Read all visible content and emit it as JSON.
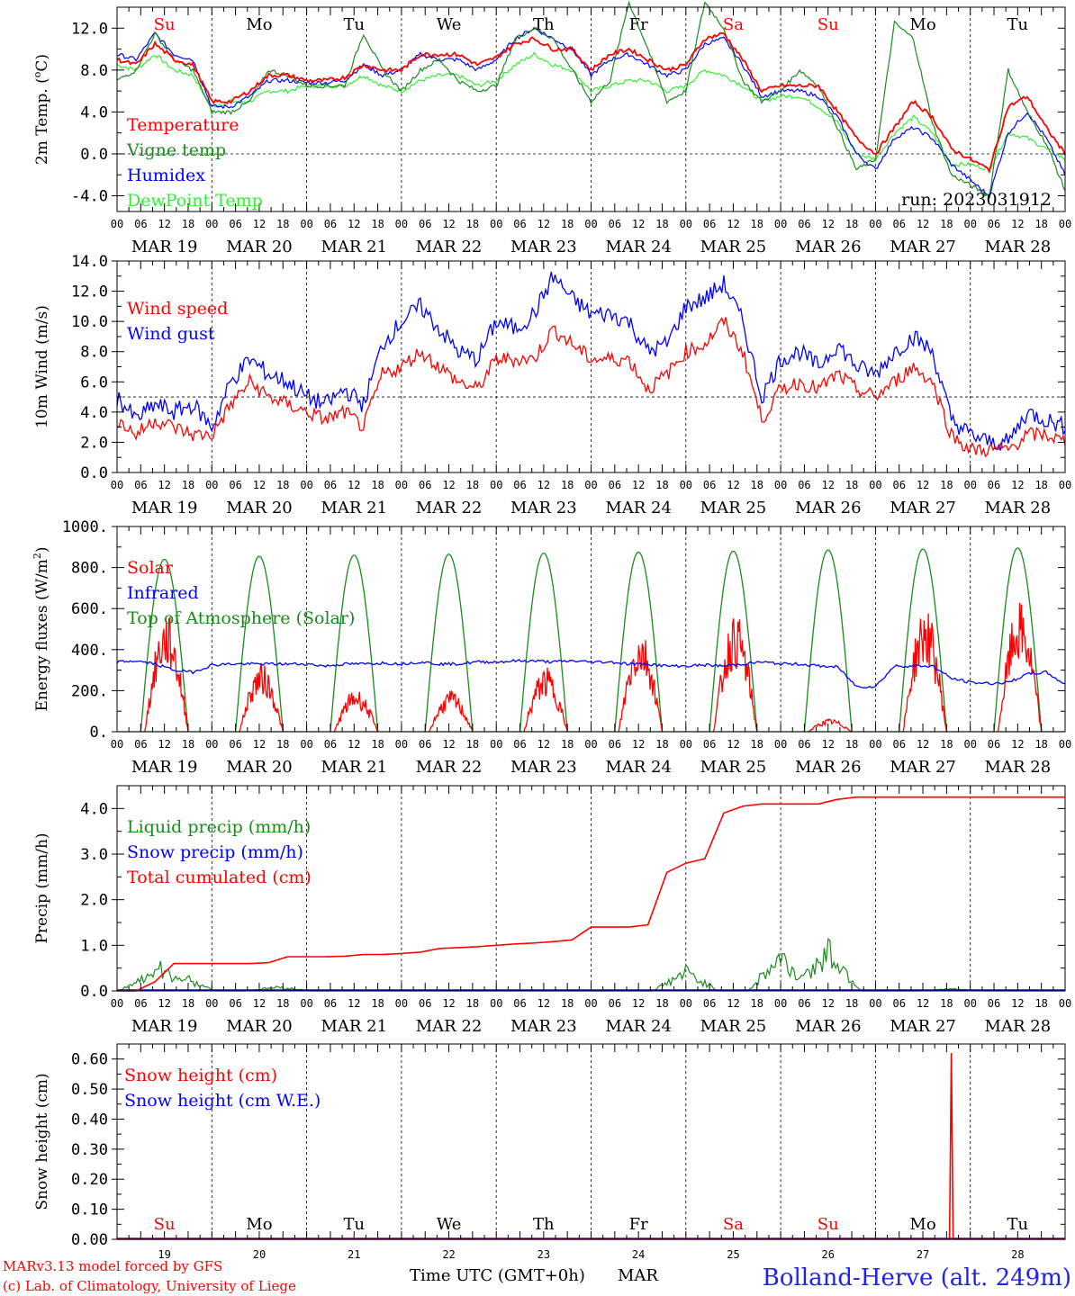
{
  "colors": {
    "red": "#ff0000",
    "green": "#1a8a1a",
    "blue": "#0000ff",
    "lime": "#33ee33",
    "purple": "#800080",
    "black": "#000000"
  },
  "days": [
    {
      "date": "MAR 19",
      "weekday": "Su",
      "weekend": true,
      "num": "19"
    },
    {
      "date": "MAR 20",
      "weekday": "Mo",
      "weekend": false,
      "num": "20"
    },
    {
      "date": "MAR 21",
      "weekday": "Tu",
      "weekend": false,
      "num": "21"
    },
    {
      "date": "MAR 22",
      "weekday": "We",
      "weekend": false,
      "num": "22"
    },
    {
      "date": "MAR 23",
      "weekday": "Th",
      "weekend": false,
      "num": "23"
    },
    {
      "date": "MAR 24",
      "weekday": "Fr",
      "weekend": false,
      "num": "24"
    },
    {
      "date": "MAR 25",
      "weekday": "Sa",
      "weekend": true,
      "num": "25"
    },
    {
      "date": "MAR 26",
      "weekday": "Su",
      "weekend": true,
      "num": "26"
    },
    {
      "date": "MAR 27",
      "weekday": "Mo",
      "weekend": false,
      "num": "27"
    },
    {
      "date": "MAR 28",
      "weekday": "Tu",
      "weekend": false,
      "num": "28"
    }
  ],
  "hour_ticks": [
    "00",
    "06",
    "12",
    "18"
  ],
  "run_label": "run: 2023031912",
  "footer": {
    "model_line": "MARv3.13 model forced by GFS",
    "credit_line": "(c) Lab. of Climatology, University of Liege",
    "axis_title": "Time UTC (GMT+0h)",
    "month": "MAR",
    "station": "Bolland-Herve (alt. 249m)"
  },
  "chart_data": [
    {
      "type": "line",
      "ylabel": "2m Temp. (oC)",
      "ylim": [
        -5.5,
        14.0
      ],
      "yticks": [
        "-4.0",
        "0.0",
        "4.0",
        "8.0",
        "12.0"
      ],
      "reference_line": 0.0,
      "legend": [
        "Temperature",
        "Vigne temp",
        "Humidex",
        "DewPoint Temp"
      ],
      "series": [
        {
          "name": "Temperature",
          "color": "red",
          "values": [
            9.0,
            8.5,
            10.5,
            9.0,
            8.5,
            5.0,
            5.0,
            6.0,
            7.5,
            7.5,
            7.0,
            7.0,
            7.3,
            8.5,
            8.0,
            8.0,
            9.5,
            9.5,
            9.5,
            8.5,
            9.2,
            10.5,
            11.0,
            10.0,
            10.0,
            8.0,
            9.5,
            10.0,
            9.0,
            8.0,
            8.5,
            11.0,
            11.5,
            9.0,
            6.0,
            6.5,
            6.5,
            6.5,
            4.0,
            1.5,
            0.0,
            2.5,
            5.0,
            3.5,
            0.5,
            -0.5,
            -1.5,
            4.5,
            5.5,
            2.5,
            0.0
          ]
        },
        {
          "name": "Vigne temp",
          "color": "green",
          "values": [
            7.0,
            8.0,
            11.5,
            9.0,
            8.0,
            4.0,
            4.0,
            5.0,
            8.0,
            7.5,
            6.5,
            6.5,
            6.5,
            11.5,
            8.0,
            6.0,
            8.0,
            9.0,
            7.0,
            6.0,
            6.5,
            11.0,
            12.0,
            11.0,
            8.0,
            5.0,
            7.0,
            14.5,
            10.0,
            5.0,
            6.0,
            14.5,
            12.0,
            7.0,
            5.0,
            6.0,
            8.0,
            6.5,
            2.5,
            -1.5,
            -0.5,
            12.5,
            11.0,
            3.0,
            -2.0,
            -3.0,
            -4.0,
            8.0,
            4.0,
            1.0,
            -3.5
          ]
        },
        {
          "name": "Humidex",
          "color": "blue",
          "values": [
            9.5,
            9.0,
            11.5,
            9.5,
            9.0,
            4.5,
            4.5,
            5.5,
            7.0,
            7.0,
            6.8,
            6.8,
            7.0,
            8.5,
            7.5,
            8.0,
            9.5,
            9.0,
            9.0,
            8.0,
            9.0,
            11.0,
            12.0,
            11.0,
            10.0,
            7.5,
            9.0,
            9.5,
            8.5,
            7.5,
            8.0,
            10.5,
            11.0,
            8.5,
            5.5,
            6.0,
            6.0,
            5.5,
            3.5,
            0.0,
            -1.5,
            1.5,
            2.5,
            1.5,
            -1.0,
            -2.5,
            -4.0,
            2.0,
            4.0,
            1.5,
            -2.0
          ]
        },
        {
          "name": "DewPoint Temp",
          "color": "lime",
          "values": [
            8.5,
            8.0,
            9.5,
            8.0,
            7.5,
            4.5,
            5.0,
            5.0,
            6.0,
            6.0,
            6.5,
            6.5,
            6.5,
            7.5,
            6.5,
            6.0,
            7.0,
            7.5,
            7.5,
            6.5,
            7.0,
            8.5,
            9.5,
            8.5,
            8.0,
            6.0,
            6.5,
            7.0,
            7.0,
            6.0,
            6.5,
            8.0,
            7.5,
            6.5,
            5.0,
            5.5,
            5.5,
            4.5,
            3.0,
            0.0,
            -0.5,
            2.0,
            3.5,
            2.0,
            -1.0,
            -1.0,
            -1.5,
            2.0,
            1.5,
            0.5,
            -0.5
          ]
        }
      ]
    },
    {
      "type": "line",
      "ylabel": "10m Wind (m/s)",
      "ylim": [
        0.0,
        14.0
      ],
      "yticks": [
        "0.0",
        "2.0",
        "4.0",
        "6.0",
        "8.0",
        "10.0",
        "12.0",
        "14.0"
      ],
      "reference_line": 5.0,
      "legend": [
        "Wind speed",
        "Wind gust"
      ],
      "series": [
        {
          "name": "Wind speed",
          "color": "red",
          "values": [
            3.5,
            2.5,
            3.5,
            3.0,
            2.5,
            2.5,
            4.5,
            6.0,
            5.0,
            4.5,
            4.0,
            3.5,
            4.0,
            3.0,
            6.5,
            7.0,
            8.0,
            7.0,
            6.0,
            5.5,
            7.5,
            7.5,
            7.5,
            9.5,
            8.5,
            7.5,
            7.5,
            7.5,
            5.5,
            6.5,
            8.0,
            8.5,
            10.0,
            8.0,
            3.5,
            5.5,
            6.0,
            5.5,
            6.5,
            5.5,
            5.0,
            6.0,
            7.0,
            6.0,
            2.5,
            1.5,
            1.5,
            1.5,
            2.5,
            2.5,
            2.0
          ]
        },
        {
          "name": "Wind gust",
          "color": "blue",
          "values": [
            5.0,
            3.5,
            4.5,
            4.0,
            4.5,
            3.0,
            6.0,
            7.5,
            6.5,
            6.0,
            5.0,
            4.5,
            5.5,
            4.5,
            8.5,
            10.0,
            11.0,
            9.5,
            8.0,
            7.5,
            10.0,
            9.5,
            10.5,
            13.0,
            11.5,
            10.5,
            10.5,
            10.0,
            8.0,
            8.5,
            11.0,
            11.5,
            12.5,
            10.0,
            5.0,
            7.5,
            8.0,
            7.0,
            8.5,
            7.0,
            6.5,
            8.0,
            9.0,
            8.0,
            3.5,
            2.5,
            2.0,
            2.0,
            4.0,
            3.5,
            3.0
          ]
        }
      ]
    },
    {
      "type": "line",
      "ylabel": "Energy fluxes (W/m2)",
      "ylim": [
        0,
        1000
      ],
      "yticks": [
        "0.",
        "200.",
        "400.",
        "600.",
        "800.",
        "1000."
      ],
      "legend": [
        "Solar",
        "Infrared",
        "Top of Atmosphere (Solar)"
      ],
      "toa_peaks": [
        840,
        855,
        860,
        865,
        870,
        875,
        880,
        885,
        890,
        895
      ],
      "solar_peaks": [
        550,
        320,
        200,
        190,
        300,
        480,
        550,
        60,
        580,
        600
      ],
      "series": [
        {
          "name": "Infrared",
          "color": "blue",
          "values": [
            340,
            345,
            330,
            300,
            290,
            325,
            330,
            330,
            330,
            330,
            330,
            320,
            330,
            330,
            335,
            330,
            340,
            330,
            330,
            340,
            340,
            345,
            345,
            340,
            345,
            340,
            340,
            330,
            330,
            320,
            320,
            325,
            320,
            330,
            340,
            330,
            330,
            320,
            315,
            220,
            220,
            320,
            320,
            320,
            260,
            240,
            235,
            240,
            280,
            290,
            230
          ]
        }
      ]
    },
    {
      "type": "line",
      "ylabel": "Precip (mm/h)",
      "ylim": [
        0.0,
        4.5
      ],
      "yticks": [
        "0.0",
        "1.0",
        "2.0",
        "3.0",
        "4.0"
      ],
      "legend": [
        "Liquid precip (mm/h)",
        "Snow precip (mm/h)",
        "Total cumulated (cm)"
      ],
      "liquid_peaks": [
        [
          0.35,
          0.4
        ],
        [
          0.45,
          0.6
        ],
        [
          0.7,
          0.35
        ],
        [
          1.7,
          0.1
        ],
        [
          6.0,
          0.5
        ],
        [
          7.0,
          0.9
        ],
        [
          7.5,
          1.1
        ],
        [
          8.8,
          0.05
        ]
      ],
      "series": [
        {
          "name": "Total cumulated (cm)",
          "color": "red",
          "values": [
            0.0,
            0.0,
            0.2,
            0.6,
            0.6,
            0.6,
            0.6,
            0.6,
            0.62,
            0.75,
            0.75,
            0.75,
            0.76,
            0.8,
            0.8,
            0.82,
            0.85,
            0.93,
            0.95,
            0.97,
            1.0,
            1.03,
            1.05,
            1.08,
            1.12,
            1.4,
            1.4,
            1.4,
            1.45,
            2.6,
            2.8,
            2.9,
            3.9,
            4.05,
            4.1,
            4.1,
            4.1,
            4.1,
            4.2,
            4.25,
            4.25,
            4.25,
            4.25,
            4.25,
            4.25,
            4.25,
            4.25,
            4.25,
            4.25,
            4.25,
            4.25
          ]
        }
      ]
    },
    {
      "type": "line",
      "ylabel": "Snow height (cm)",
      "ylim": [
        0.0,
        0.65
      ],
      "yticks": [
        "0.00",
        "0.10",
        "0.20",
        "0.30",
        "0.40",
        "0.50",
        "0.60"
      ],
      "legend": [
        "Snow height (cm)",
        "Snow height (cm W.E.)"
      ],
      "spike": {
        "day": 8.8,
        "value": 0.62
      }
    }
  ]
}
